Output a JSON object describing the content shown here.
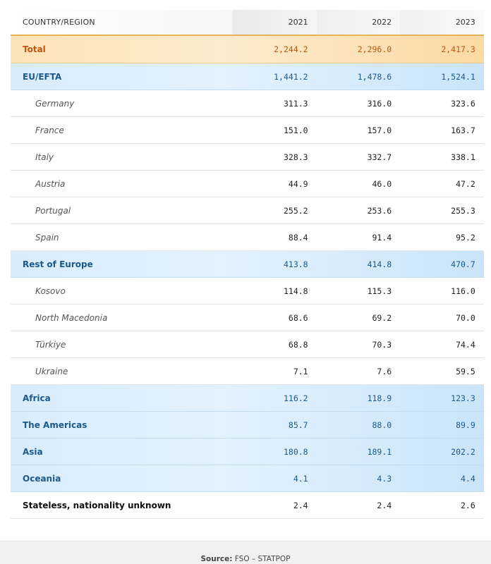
{
  "table": {
    "headers": [
      "COUNTRY/REGION",
      "2021",
      "2022",
      "2023"
    ],
    "rows": [
      {
        "kind": "total",
        "name": "Total",
        "values": [
          "2,244.2",
          "2,296.0",
          "2,417.3"
        ]
      },
      {
        "kind": "region",
        "name": "EU/EFTA",
        "values": [
          "1,441.2",
          "1,478.6",
          "1,524.1"
        ]
      },
      {
        "kind": "country",
        "name": "Germany",
        "values": [
          "311.3",
          "316.0",
          "323.6"
        ]
      },
      {
        "kind": "country",
        "name": "France",
        "values": [
          "151.0",
          "157.0",
          "163.7"
        ]
      },
      {
        "kind": "country",
        "name": "Italy",
        "values": [
          "328.3",
          "332.7",
          "338.1"
        ]
      },
      {
        "kind": "country",
        "name": "Austria",
        "values": [
          "44.9",
          "46.0",
          "47.2"
        ]
      },
      {
        "kind": "country",
        "name": "Portugal",
        "values": [
          "255.2",
          "253.6",
          "255.3"
        ]
      },
      {
        "kind": "country",
        "name": "Spain",
        "values": [
          "88.4",
          "91.4",
          "95.2"
        ]
      },
      {
        "kind": "region",
        "name": "Rest of Europe",
        "values": [
          "413.8",
          "414.8",
          "470.7"
        ]
      },
      {
        "kind": "country",
        "name": "Kosovo",
        "values": [
          "114.8",
          "115.3",
          "116.0"
        ]
      },
      {
        "kind": "country",
        "name": "North Macedonia",
        "values": [
          "68.6",
          "69.2",
          "70.0"
        ]
      },
      {
        "kind": "country",
        "name": "Türkiye",
        "values": [
          "68.8",
          "70.3",
          "74.4"
        ]
      },
      {
        "kind": "country",
        "name": "Ukraine",
        "values": [
          "7.1",
          "7.6",
          "59.5"
        ]
      },
      {
        "kind": "region",
        "name": "Africa",
        "values": [
          "116.2",
          "118.9",
          "123.3"
        ]
      },
      {
        "kind": "region",
        "name": "The Americas",
        "values": [
          "85.7",
          "88.0",
          "89.9"
        ]
      },
      {
        "kind": "region",
        "name": "Asia",
        "values": [
          "180.8",
          "189.1",
          "202.2"
        ]
      },
      {
        "kind": "region",
        "name": "Oceania",
        "values": [
          "4.1",
          "4.3",
          "4.4"
        ]
      },
      {
        "kind": "plain",
        "name": "Stateless, nationality unknown",
        "values": [
          "2.4",
          "2.4",
          "2.6"
        ]
      }
    ]
  },
  "footer": {
    "source_label": "Source:",
    "source_text": " FSO – STATPOP"
  }
}
